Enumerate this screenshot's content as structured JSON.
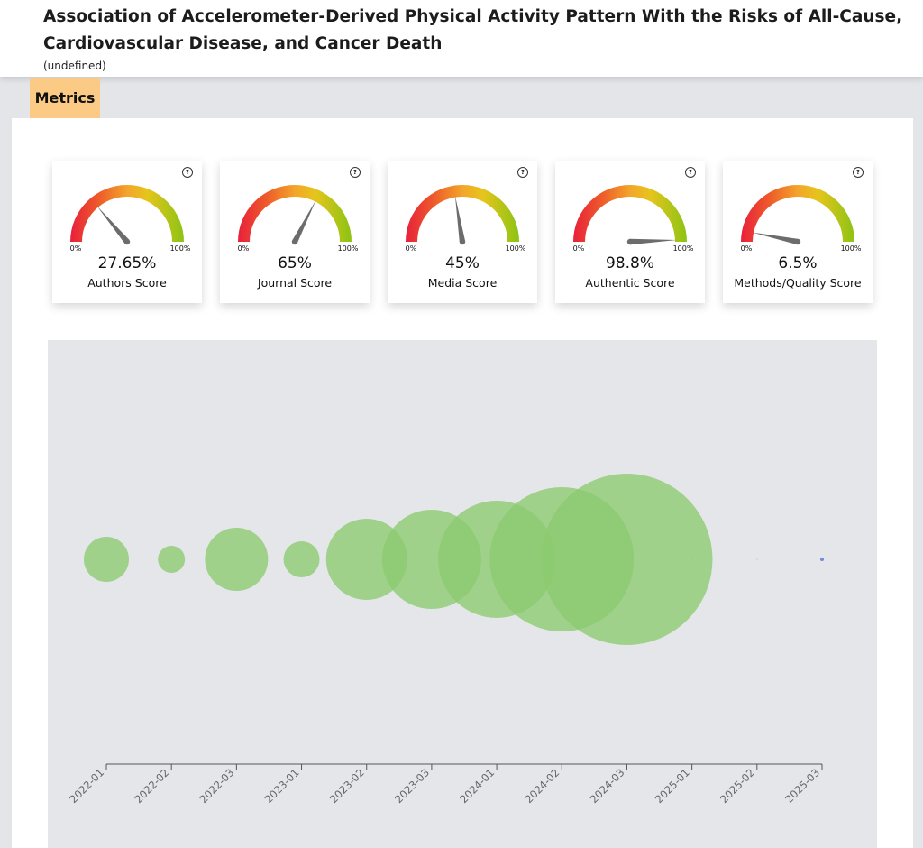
{
  "header": {
    "title": "Association of Accelerometer-Derived Physical Activity Pattern With the Risks of All-Cause, Cardiovascular Disease, and Cancer Death",
    "subtitle": "(undefined)"
  },
  "tabs": [
    {
      "label": "Metrics",
      "active": true
    }
  ],
  "colors": {
    "tab_bg": "#fbcb85",
    "bubble": "#8cca6f",
    "last_point": "#6f8ed8"
  },
  "gauges": [
    {
      "value": 27.65,
      "display": "27.65%",
      "label": "Authors Score",
      "min_label": "0%",
      "max_label": "100%"
    },
    {
      "value": 65,
      "display": "65%",
      "label": "Journal Score",
      "min_label": "0%",
      "max_label": "100%"
    },
    {
      "value": 45,
      "display": "45%",
      "label": "Media Score",
      "min_label": "0%",
      "max_label": "100%"
    },
    {
      "value": 98.8,
      "display": "98.8%",
      "label": "Authentic Score",
      "min_label": "0%",
      "max_label": "100%"
    },
    {
      "value": 6.5,
      "display": "6.5%",
      "label": "Methods/Quality Score",
      "min_label": "0%",
      "max_label": "100%"
    }
  ],
  "chart_data": {
    "type": "scatter",
    "categories": [
      "2022-01",
      "2022-02",
      "2022-03",
      "2023-01",
      "2023-02",
      "2023-03",
      "2024-01",
      "2024-02",
      "2024-03",
      "2025-01",
      "2025-02",
      "2025-03"
    ],
    "sizes": [
      25,
      15,
      35,
      20,
      45,
      55,
      65,
      80,
      95,
      0.4,
      0.4,
      2
    ],
    "grid": false,
    "legend": "none"
  }
}
